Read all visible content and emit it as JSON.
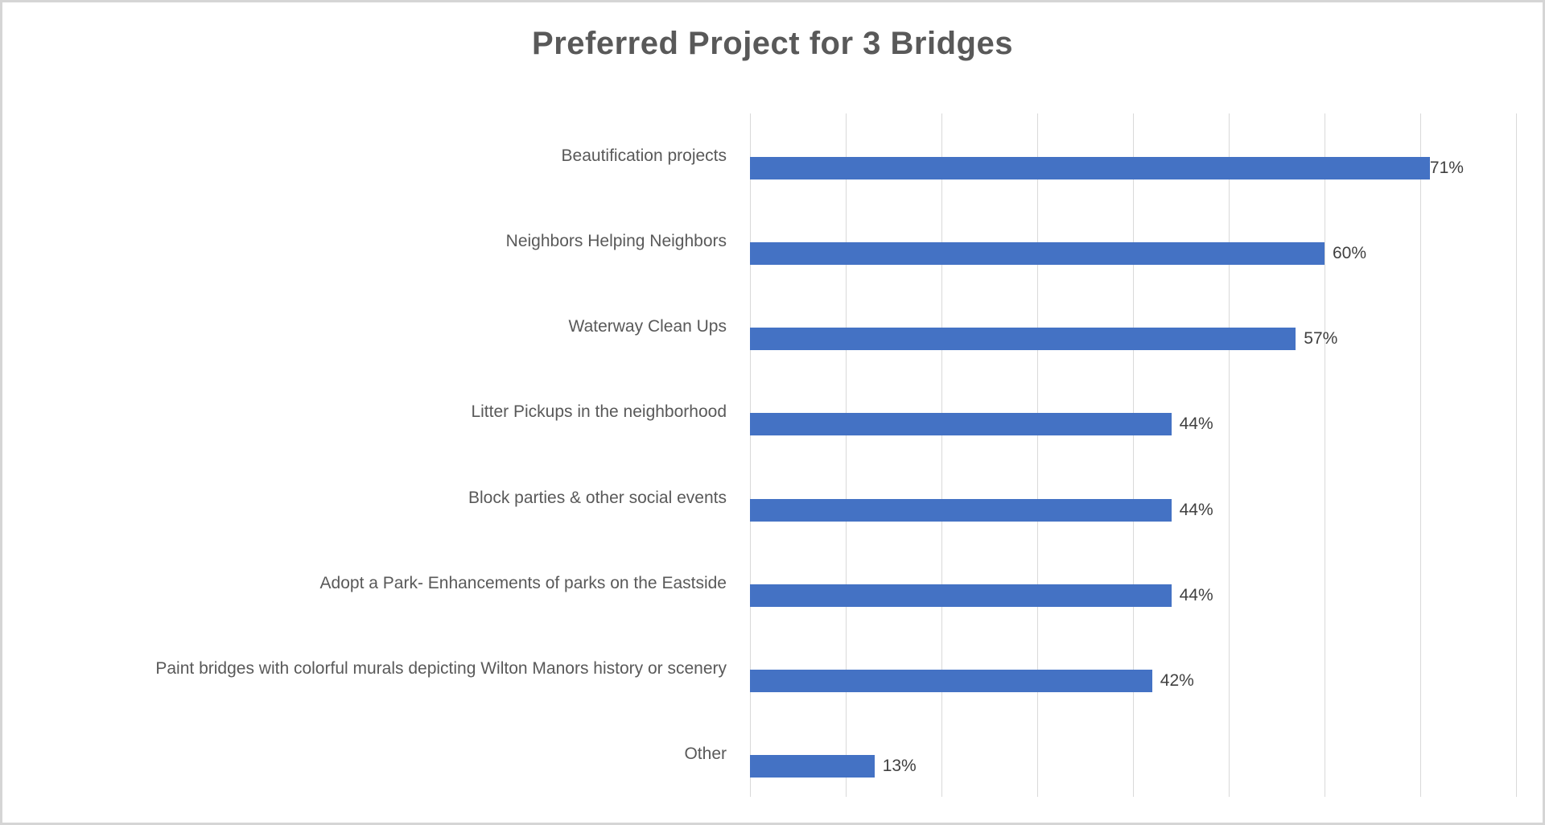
{
  "frame": {
    "background": "#ffffff",
    "border_color": "#d5d5d5"
  },
  "chart_data": {
    "type": "bar",
    "orientation": "horizontal",
    "title": "Preferred Project for 3 Bridges",
    "categories": [
      "Beautification projects",
      "Neighbors Helping Neighbors",
      "Waterway Clean Ups",
      "Litter Pickups in the neighborhood",
      "Block parties & other social events",
      "Adopt a Park- Enhancements of parks on the Eastside",
      "Paint bridges with colorful murals depicting Wilton Manors history or scenery",
      "Other"
    ],
    "values": [
      71,
      60,
      57,
      44,
      44,
      44,
      42,
      13
    ],
    "value_labels": [
      "71%",
      "60%",
      "57%",
      "44%",
      "44%",
      "44%",
      "42%",
      "13%"
    ],
    "xlabel": "",
    "ylabel": "",
    "xlim": [
      0,
      80
    ],
    "gridline_step": 10,
    "grid": true,
    "legend": "none",
    "axis_tick_labels_shown": false,
    "colors": {
      "bar": "#4472c4",
      "gridline": "#d9d9d9",
      "title": "#595959",
      "category_label": "#595959",
      "value_label": "#404040"
    }
  }
}
